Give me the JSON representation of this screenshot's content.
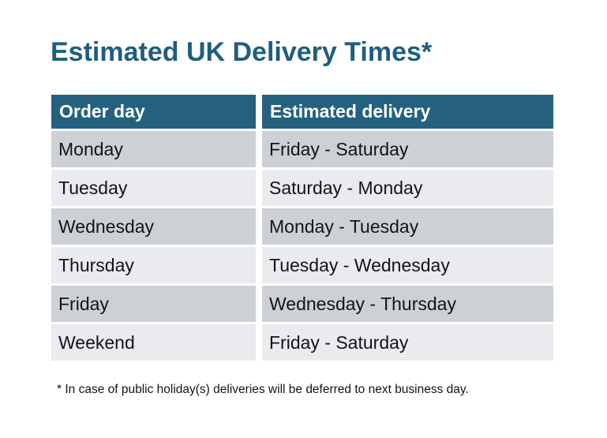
{
  "title": "Estimated UK Delivery Times*",
  "table": {
    "headers": [
      "Order day",
      "Estimated delivery"
    ],
    "rows": [
      [
        "Monday",
        "Friday - Saturday"
      ],
      [
        "Tuesday",
        "Saturday - Monday"
      ],
      [
        "Wednesday",
        "Monday - Tuesday"
      ],
      [
        "Thursday",
        "Tuesday - Wednesday"
      ],
      [
        "Friday",
        "Wednesday - Thursday"
      ],
      [
        "Weekend",
        "Friday - Saturday"
      ]
    ]
  },
  "footnote": "* In case of public holiday(s) deliveries will be deferred to next business day.",
  "colors": {
    "accent": "#1f5e7d",
    "header_bg": "#24617f",
    "header_text": "#ffffff",
    "row_dark": "#cdd1d6",
    "row_light": "#e9ebee",
    "text": "#141414",
    "page_bg": "#ffffff"
  }
}
